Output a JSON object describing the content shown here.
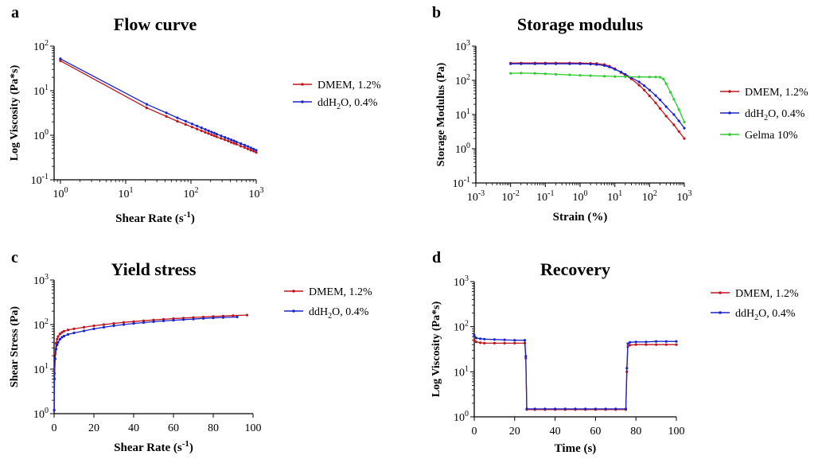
{
  "colors": {
    "dmem": "#c0151c",
    "ddh2o": "#1a24c8",
    "gelma": "#2ecc2e",
    "axis": "#000000"
  },
  "chart_data": [
    {
      "id": "a",
      "panel_letter": "a",
      "type": "line",
      "title": "Flow curve",
      "xlabel": [
        "Shear Rate (s",
        "-1",
        ")"
      ],
      "ylabel": "Log Viscosity (Pa*s)",
      "xscale": "log",
      "yscale": "log",
      "xlim": [
        0.8,
        1000
      ],
      "ylim": [
        0.1,
        100
      ],
      "xticks": [
        {
          "v": 1,
          "b": "10",
          "e": "0"
        },
        {
          "v": 10,
          "b": "10",
          "e": "1"
        },
        {
          "v": 100,
          "b": "10",
          "e": "2"
        },
        {
          "v": 1000,
          "b": "10",
          "e": "3"
        }
      ],
      "yticks": [
        {
          "v": 0.1,
          "b": "10",
          "e": "-1"
        },
        {
          "v": 1,
          "b": "10",
          "e": "0"
        },
        {
          "v": 10,
          "b": "10",
          "e": "1"
        },
        {
          "v": 100,
          "b": "10",
          "e": "2"
        }
      ],
      "legend_position": "right",
      "series": [
        {
          "name": "DMEM, 1.2%",
          "legend": [
            "DMEM, 1.2%"
          ],
          "color_key": "dmem",
          "x": [
            1,
            21,
            42,
            62,
            83,
            104,
            124,
            145,
            166,
            186,
            207,
            228,
            248,
            290,
            331,
            373,
            414,
            456,
            497,
            580,
            663,
            746,
            829,
            912,
            1000
          ],
          "y": [
            47,
            4.12,
            2.64,
            2.05,
            1.74,
            1.53,
            1.38,
            1.26,
            1.16,
            1.09,
            1.02,
            0.97,
            0.92,
            0.85,
            0.79,
            0.74,
            0.69,
            0.66,
            0.63,
            0.57,
            0.53,
            0.49,
            0.46,
            0.44,
            0.41
          ]
        },
        {
          "name": "ddH2O, 0.4%",
          "legend": [
            "ddH",
            "2",
            "O, 0.4%"
          ],
          "color_key": "ddh2o",
          "x": [
            1,
            21,
            42,
            62,
            83,
            104,
            124,
            145,
            166,
            186,
            207,
            228,
            248,
            290,
            331,
            373,
            414,
            456,
            497,
            580,
            663,
            746,
            829,
            912,
            1000
          ],
          "y": [
            52,
            4.96,
            3.18,
            2.46,
            2.06,
            1.8,
            1.61,
            1.47,
            1.35,
            1.26,
            1.18,
            1.12,
            1.06,
            0.97,
            0.9,
            0.84,
            0.79,
            0.75,
            0.71,
            0.65,
            0.6,
            0.56,
            0.52,
            0.49,
            0.46
          ]
        }
      ]
    },
    {
      "id": "b",
      "panel_letter": "b",
      "type": "line",
      "title": "Storage modulus",
      "xlabel": [
        "Strain (%)"
      ],
      "ylabel": "Storage Modulus  (Pa)",
      "xscale": "log",
      "yscale": "log",
      "xlim": [
        0.001,
        1000
      ],
      "ylim": [
        0.1,
        1000
      ],
      "xticks": [
        {
          "v": 0.001,
          "b": "10",
          "e": "-3"
        },
        {
          "v": 0.01,
          "b": "10",
          "e": "-2"
        },
        {
          "v": 0.1,
          "b": "10",
          "e": "-1"
        },
        {
          "v": 1,
          "b": "10",
          "e": "0"
        },
        {
          "v": 10,
          "b": "10",
          "e": "1"
        },
        {
          "v": 100,
          "b": "10",
          "e": "2"
        },
        {
          "v": 1000,
          "b": "10",
          "e": "3"
        }
      ],
      "yticks": [
        {
          "v": 0.1,
          "b": "10",
          "e": "-1"
        },
        {
          "v": 1,
          "b": "10",
          "e": "0"
        },
        {
          "v": 10,
          "b": "10",
          "e": "1"
        },
        {
          "v": 100,
          "b": "10",
          "e": "2"
        },
        {
          "v": 1000,
          "b": "10",
          "e": "3"
        }
      ],
      "legend_position": "right",
      "series": [
        {
          "name": "DMEM, 1.2%",
          "legend": [
            "DMEM, 1.2%"
          ],
          "color_key": "dmem",
          "x": [
            0.01,
            0.02,
            0.05,
            0.1,
            0.2,
            0.5,
            1,
            2,
            3,
            5,
            7,
            10,
            15,
            20,
            30,
            50,
            70,
            100,
            150,
            200,
            300,
            500,
            700,
            1000
          ],
          "y": [
            320,
            322,
            322,
            322,
            322,
            322,
            320,
            315,
            310,
            290,
            260,
            220,
            170,
            140,
            110,
            72,
            52,
            35,
            22,
            15,
            9,
            5,
            3.2,
            2
          ]
        },
        {
          "name": "ddH2O, 0.4%",
          "legend": [
            "ddH",
            "2",
            "O, 0.4%"
          ],
          "color_key": "ddh2o",
          "x": [
            0.01,
            0.02,
            0.05,
            0.1,
            0.2,
            0.5,
            1,
            2,
            3,
            5,
            7,
            10,
            15,
            20,
            30,
            50,
            70,
            100,
            150,
            200,
            300,
            500,
            700,
            1000
          ],
          "y": [
            305,
            305,
            305,
            305,
            305,
            305,
            303,
            298,
            290,
            270,
            245,
            210,
            175,
            150,
            120,
            90,
            70,
            52,
            36,
            27,
            17,
            10,
            6.5,
            4
          ]
        },
        {
          "name": "Gelma 10%",
          "legend": [
            "Gelma 10%"
          ],
          "color_key": "gelma",
          "x": [
            0.01,
            0.02,
            0.05,
            0.1,
            0.2,
            0.5,
            1,
            2,
            5,
            10,
            20,
            50,
            100,
            150,
            200,
            250,
            300,
            400,
            500,
            700,
            1000
          ],
          "y": [
            160,
            163,
            160,
            155,
            150,
            145,
            140,
            137,
            133,
            130,
            128,
            126,
            125,
            125,
            124,
            110,
            80,
            45,
            28,
            14,
            6
          ]
        }
      ]
    },
    {
      "id": "c",
      "panel_letter": "c",
      "type": "line",
      "title": "Yield stress",
      "xlabel": [
        "Shear Rate (s",
        "-1",
        ")"
      ],
      "ylabel": "Shear Stress (Pa)",
      "xscale": "linear",
      "yscale": "log",
      "xlim": [
        0,
        100
      ],
      "ylim": [
        1,
        1000
      ],
      "xticks": [
        {
          "v": 0,
          "b": "0"
        },
        {
          "v": 20,
          "b": "20"
        },
        {
          "v": 40,
          "b": "40"
        },
        {
          "v": 60,
          "b": "60"
        },
        {
          "v": 80,
          "b": "80"
        },
        {
          "v": 100,
          "b": "100"
        }
      ],
      "yticks": [
        {
          "v": 1,
          "b": "10",
          "e": "0"
        },
        {
          "v": 10,
          "b": "10",
          "e": "1"
        },
        {
          "v": 100,
          "b": "10",
          "e": "2"
        },
        {
          "v": 1000,
          "b": "10",
          "e": "3"
        }
      ],
      "legend_position": "right",
      "series": [
        {
          "name": "DMEM, 1.2%",
          "legend": [
            "DMEM, 1.2%"
          ],
          "color_key": "dmem",
          "x": [
            0.05,
            0.2,
            0.5,
            1,
            1.5,
            2,
            3,
            4,
            5,
            7,
            10,
            15,
            20,
            25,
            30,
            35,
            40,
            45,
            50,
            55,
            60,
            65,
            70,
            75,
            80,
            85,
            90,
            97
          ],
          "y": [
            1.2,
            8,
            22,
            38,
            47,
            54,
            62,
            67,
            71,
            76,
            80,
            87,
            94,
            100,
            106,
            112,
            117,
            122,
            127,
            131,
            136,
            140,
            144,
            148,
            152,
            155,
            159,
            163
          ]
        },
        {
          "name": "ddH2O, 0.4%",
          "legend": [
            "ddH",
            "2",
            "O, 0.4%"
          ],
          "color_key": "ddh2o",
          "x": [
            0.05,
            0.2,
            0.5,
            1,
            1.5,
            2,
            3,
            4,
            5,
            7,
            10,
            15,
            20,
            25,
            30,
            35,
            40,
            45,
            50,
            55,
            60,
            65,
            70,
            75,
            80,
            85,
            92
          ],
          "y": [
            1.2,
            6,
            17,
            28,
            35,
            40,
            47,
            52,
            55,
            60,
            65,
            72,
            80,
            87,
            94,
            100,
            106,
            111,
            116,
            121,
            125,
            129,
            133,
            137,
            141,
            144,
            148
          ]
        }
      ]
    },
    {
      "id": "d",
      "panel_letter": "d",
      "type": "line",
      "title": "Recovery",
      "xlabel": [
        "Time (s)"
      ],
      "ylabel": "Log Viscosity (Pa*s)",
      "xscale": "linear",
      "yscale": "log",
      "xlim": [
        0,
        100
      ],
      "ylim": [
        1,
        1000
      ],
      "xticks": [
        {
          "v": 0,
          "b": "0"
        },
        {
          "v": 20,
          "b": "20"
        },
        {
          "v": 40,
          "b": "40"
        },
        {
          "v": 60,
          "b": "60"
        },
        {
          "v": 80,
          "b": "80"
        },
        {
          "v": 100,
          "b": "100"
        }
      ],
      "yticks": [
        {
          "v": 1,
          "b": "10",
          "e": "0"
        },
        {
          "v": 10,
          "b": "10",
          "e": "1"
        },
        {
          "v": 100,
          "b": "10",
          "e": "2"
        },
        {
          "v": 1000,
          "b": "10",
          "e": "3"
        }
      ],
      "legend_position": "right",
      "series": [
        {
          "name": "DMEM, 1.2%",
          "legend": [
            "DMEM, 1.2%"
          ],
          "color_key": "dmem",
          "x": [
            0,
            1,
            3,
            5,
            10,
            15,
            20,
            25,
            25.5,
            26,
            30,
            35,
            40,
            45,
            50,
            55,
            60,
            65,
            70,
            75,
            75.5,
            76,
            77,
            80,
            85,
            90,
            95,
            100
          ],
          "y": [
            50,
            46,
            44,
            43,
            43,
            43,
            43,
            43,
            20,
            1.45,
            1.45,
            1.45,
            1.45,
            1.45,
            1.45,
            1.45,
            1.45,
            1.45,
            1.45,
            1.45,
            10,
            36,
            39,
            40,
            40,
            40,
            40,
            40
          ]
        },
        {
          "name": "ddH2O, 0.4%",
          "legend": [
            "ddH",
            "2",
            "O, 0.4%"
          ],
          "color_key": "ddh2o",
          "x": [
            0,
            1,
            3,
            5,
            10,
            15,
            20,
            25,
            25.5,
            26,
            30,
            35,
            40,
            45,
            50,
            55,
            60,
            65,
            70,
            75,
            75.5,
            76,
            77,
            80,
            85,
            90,
            95,
            100
          ],
          "y": [
            65,
            56,
            54,
            53,
            52,
            51,
            50,
            50,
            22,
            1.5,
            1.5,
            1.5,
            1.5,
            1.5,
            1.5,
            1.5,
            1.5,
            1.5,
            1.5,
            1.5,
            12,
            42,
            45,
            46,
            46,
            47,
            47,
            47
          ]
        }
      ]
    }
  ]
}
